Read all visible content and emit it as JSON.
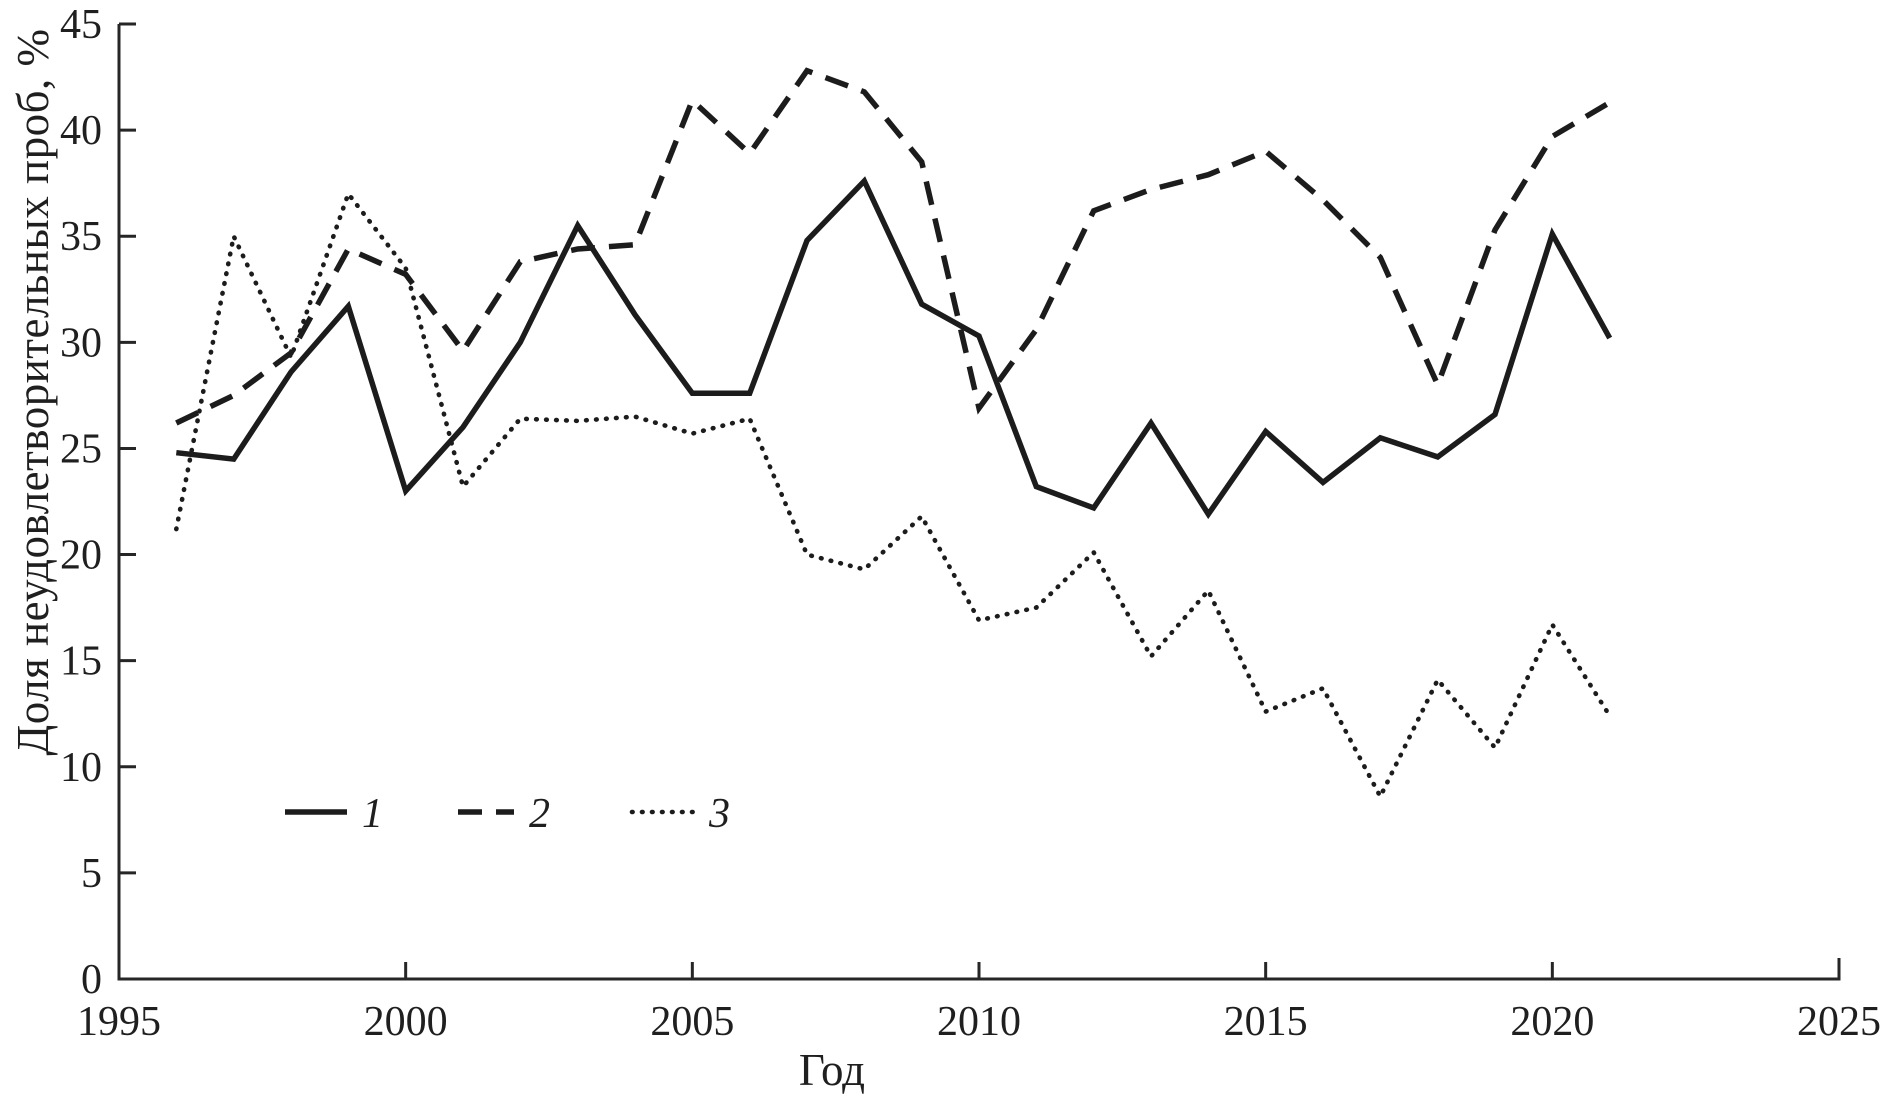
{
  "chart_data": {
    "type": "line",
    "title": "",
    "xlabel": "Год",
    "ylabel": "Доля неудовлетворительных проб, %",
    "xlim": [
      1995,
      2025
    ],
    "ylim": [
      0,
      45
    ],
    "x_ticks": [
      1995,
      2000,
      2005,
      2010,
      2015,
      2020,
      2025
    ],
    "y_ticks": [
      0,
      5,
      10,
      15,
      20,
      25,
      30,
      35,
      40,
      45
    ],
    "grid": false,
    "legend_position": "inside-lower-left",
    "x": [
      1996,
      1997,
      1998,
      1999,
      2000,
      2001,
      2002,
      2003,
      2004,
      2005,
      2006,
      2007,
      2008,
      2009,
      2010,
      2011,
      2012,
      2013,
      2014,
      2015,
      2016,
      2017,
      2018,
      2019,
      2020,
      2021
    ],
    "series": [
      {
        "name": "1",
        "style": "solid",
        "color": "#1c1c1c",
        "values": [
          24.8,
          24.5,
          28.6,
          31.7,
          23.0,
          26.0,
          30.0,
          35.5,
          31.3,
          27.6,
          27.6,
          34.8,
          37.6,
          31.8,
          30.3,
          23.2,
          22.2,
          26.2,
          21.9,
          25.8,
          23.4,
          25.5,
          24.6,
          26.6,
          35.1,
          30.2
        ]
      },
      {
        "name": "2",
        "style": "dashed",
        "color": "#1c1c1c",
        "values": [
          26.2,
          27.5,
          29.5,
          34.4,
          33.2,
          29.6,
          33.8,
          34.4,
          34.6,
          41.4,
          38.9,
          42.8,
          41.8,
          38.5,
          26.9,
          30.6,
          36.2,
          37.2,
          37.9,
          39.0,
          36.7,
          34.0,
          28.0,
          35.3,
          39.7,
          41.3
        ]
      },
      {
        "name": "3",
        "style": "dotted",
        "color": "#1c1c1c",
        "values": [
          21.2,
          35.0,
          29.3,
          37.0,
          33.5,
          23.2,
          26.4,
          26.3,
          26.5,
          25.7,
          26.4,
          20.0,
          19.3,
          21.8,
          16.9,
          17.5,
          20.1,
          15.2,
          18.3,
          12.6,
          13.7,
          8.6,
          14.1,
          10.9,
          16.7,
          12.4
        ]
      }
    ]
  }
}
